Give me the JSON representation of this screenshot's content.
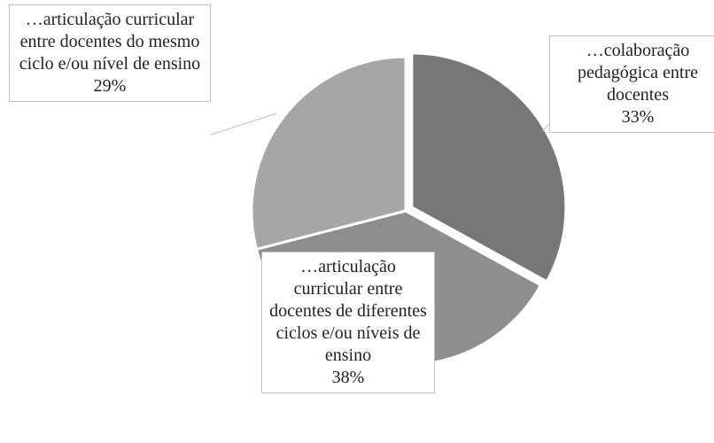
{
  "chart_data": {
    "type": "pie",
    "categories": [
      "…colaboração pedagógica entre docentes",
      "…articulação curricular entre docentes de diferentes ciclos e/ou níveis de ensino",
      "…articulação curricular entre docentes do mesmo ciclo e/ou nível de ensino"
    ],
    "values": [
      33,
      38,
      29
    ],
    "value_labels": [
      "33%",
      "38%",
      "29%"
    ],
    "colors": [
      "#777777",
      "#8e8e8e",
      "#a6a6a6"
    ]
  }
}
